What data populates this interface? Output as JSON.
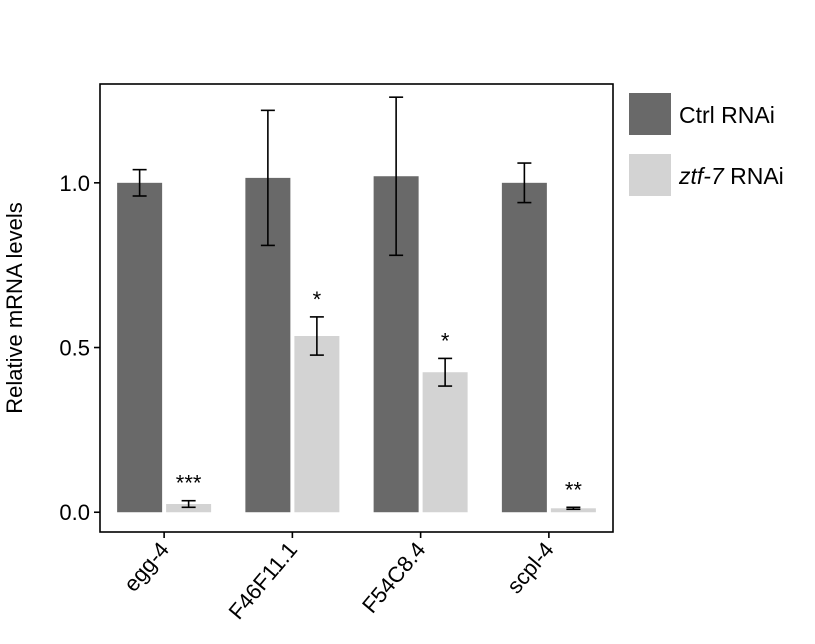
{
  "chart_data": {
    "type": "bar",
    "categories": [
      "egg-4",
      "F46F11.1",
      "F54C8.4",
      "scpl-4"
    ],
    "series": [
      {
        "name": "Ctrl RNAi",
        "color": "#696969",
        "values": [
          1.0,
          1.015,
          1.02,
          1.0
        ],
        "error": [
          0.04,
          0.205,
          0.24,
          0.06
        ]
      },
      {
        "name": "ztf-7 RNAi",
        "name_italic": "ztf-7",
        "name_rest": " RNAi",
        "color": "#d3d3d3",
        "values": [
          0.025,
          0.535,
          0.425,
          0.012
        ],
        "error": [
          0.01,
          0.058,
          0.042,
          0.003
        ]
      }
    ],
    "significance": [
      "***",
      "*",
      "*",
      "**"
    ],
    "ylabel": "Relative mRNA levels",
    "xlabel": "",
    "ylim": [
      -0.06,
      1.3
    ],
    "yticks": [
      0.0,
      0.5,
      1.0
    ],
    "ytick_labels": [
      "0.0",
      "0.5",
      "1.0"
    ],
    "grid": false,
    "legend_position": "right"
  }
}
